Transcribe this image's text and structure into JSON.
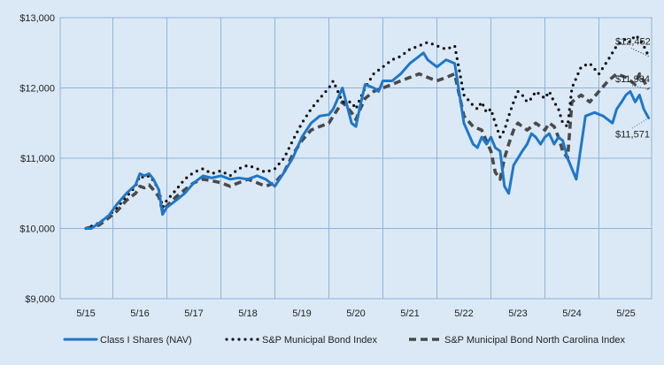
{
  "chart_data": {
    "type": "line",
    "x_ticks": [
      "5/15",
      "5/16",
      "5/17",
      "5/18",
      "5/19",
      "5/20",
      "5/21",
      "5/22",
      "5/23",
      "5/24",
      "5/25"
    ],
    "y_ticks": [
      "$9,000",
      "$10,000",
      "$11,000",
      "$12,000",
      "$13,000"
    ],
    "ylim": [
      9000,
      13000
    ],
    "xlim": [
      0,
      10.4
    ],
    "grid": true,
    "legend": "bottom",
    "series": [
      {
        "name": "Class I Shares (NAV)",
        "color": "#1f77c9",
        "style": "solid",
        "end_label": "$11,571",
        "x": [
          0,
          0.1,
          0.25,
          0.42,
          0.58,
          0.75,
          0.92,
          1.0,
          1.08,
          1.17,
          1.25,
          1.35,
          1.42,
          1.5,
          1.67,
          1.83,
          2.0,
          2.17,
          2.33,
          2.5,
          2.67,
          2.83,
          3.0,
          3.17,
          3.33,
          3.5,
          3.67,
          3.83,
          4.0,
          4.17,
          4.33,
          4.5,
          4.58,
          4.75,
          4.92,
          5.0,
          5.08,
          5.17,
          5.33,
          5.42,
          5.5,
          5.67,
          5.83,
          6.0,
          6.17,
          6.25,
          6.33,
          6.5,
          6.67,
          6.83,
          7.0,
          7.17,
          7.25,
          7.33,
          7.42,
          7.5,
          7.58,
          7.67,
          7.75,
          7.83,
          7.92,
          8.0,
          8.08,
          8.17,
          8.25,
          8.33,
          8.42,
          8.5,
          8.58,
          8.67,
          8.75,
          8.83,
          8.92,
          9.0,
          9.08,
          9.25,
          9.42,
          9.58,
          9.75,
          9.83,
          9.92,
          10.0,
          10.08,
          10.17,
          10.25,
          10.33,
          10.42
        ],
        "values": [
          10000,
          10000,
          10080,
          10180,
          10350,
          10500,
          10620,
          10780,
          10750,
          10780,
          10700,
          10550,
          10200,
          10300,
          10400,
          10500,
          10650,
          10750,
          10720,
          10750,
          10700,
          10720,
          10700,
          10750,
          10700,
          10600,
          10800,
          11000,
          11300,
          11500,
          11600,
          11620,
          11700,
          12000,
          11500,
          11450,
          11750,
          12050,
          12000,
          11950,
          12100,
          12100,
          12200,
          12350,
          12450,
          12500,
          12400,
          12300,
          12400,
          12350,
          11500,
          11200,
          11150,
          11300,
          11200,
          11300,
          11150,
          11100,
          10600,
          10500,
          10900,
          11000,
          11100,
          11200,
          11350,
          11300,
          11200,
          11300,
          11350,
          11200,
          11300,
          11250,
          11000,
          10850,
          10700,
          11600,
          11650,
          11600,
          11500,
          11700,
          11800,
          11900,
          11950,
          11800,
          11900,
          11700,
          11571
        ]
      },
      {
        "name": "S&P Municipal Bond Index",
        "color": "#111111",
        "style": "dotted",
        "end_label": "$12,452",
        "x": [
          0,
          0.25,
          0.42,
          0.58,
          0.75,
          0.92,
          1.0,
          1.08,
          1.17,
          1.25,
          1.35,
          1.42,
          1.5,
          1.67,
          1.83,
          2.0,
          2.17,
          2.33,
          2.5,
          2.67,
          2.83,
          3.0,
          3.17,
          3.33,
          3.5,
          3.67,
          3.83,
          4.0,
          4.17,
          4.33,
          4.5,
          4.58,
          4.75,
          4.92,
          5.0,
          5.08,
          5.17,
          5.33,
          5.5,
          5.67,
          5.83,
          6.0,
          6.17,
          6.33,
          6.5,
          6.67,
          6.83,
          7.0,
          7.17,
          7.25,
          7.33,
          7.42,
          7.5,
          7.58,
          7.67,
          7.75,
          7.83,
          7.92,
          8.0,
          8.08,
          8.17,
          8.25,
          8.33,
          8.42,
          8.5,
          8.58,
          8.67,
          8.75,
          8.83,
          8.92,
          9.0,
          9.17,
          9.33,
          9.5,
          9.67,
          9.83,
          10.0,
          10.08,
          10.17,
          10.25,
          10.33,
          10.42
        ],
        "values": [
          10000,
          10080,
          10180,
          10300,
          10450,
          10600,
          10750,
          10720,
          10750,
          10680,
          10550,
          10300,
          10400,
          10550,
          10700,
          10800,
          10850,
          10780,
          10820,
          10750,
          10850,
          10900,
          10850,
          10800,
          10850,
          11000,
          11250,
          11500,
          11700,
          11850,
          12000,
          12100,
          11800,
          11800,
          11700,
          11850,
          12000,
          12200,
          12300,
          12400,
          12450,
          12550,
          12600,
          12650,
          12600,
          12550,
          12600,
          11900,
          11750,
          11700,
          11800,
          11650,
          11700,
          11500,
          11300,
          11400,
          11600,
          11800,
          11950,
          11900,
          11800,
          11850,
          11950,
          11900,
          11850,
          11950,
          11800,
          11700,
          11500,
          11450,
          12000,
          12300,
          12350,
          12200,
          12400,
          12600,
          12700,
          12650,
          12750,
          12700,
          12600,
          12452
        ]
      },
      {
        "name": "S&P Municipal Bond North Carolina Index",
        "color": "#4a4a4a",
        "style": "dashed",
        "end_label": "$11,984",
        "x": [
          0,
          0.25,
          0.42,
          0.58,
          0.75,
          0.92,
          1.0,
          1.08,
          1.17,
          1.25,
          1.35,
          1.42,
          1.5,
          1.67,
          1.83,
          2.0,
          2.17,
          2.33,
          2.5,
          2.67,
          2.83,
          3.0,
          3.17,
          3.33,
          3.5,
          3.67,
          3.83,
          4.0,
          4.17,
          4.33,
          4.5,
          4.58,
          4.75,
          4.92,
          5.0,
          5.08,
          5.17,
          5.33,
          5.5,
          5.67,
          5.83,
          6.0,
          6.17,
          6.33,
          6.5,
          6.67,
          6.83,
          7.0,
          7.17,
          7.33,
          7.5,
          7.58,
          7.67,
          7.75,
          7.83,
          7.92,
          8.0,
          8.08,
          8.17,
          8.33,
          8.42,
          8.5,
          8.58,
          8.67,
          8.75,
          8.83,
          8.92,
          9.0,
          9.17,
          9.33,
          9.5,
          9.67,
          9.83,
          10.0,
          10.17,
          10.25,
          10.33,
          10.42
        ],
        "values": [
          10000,
          10050,
          10150,
          10250,
          10400,
          10500,
          10600,
          10580,
          10620,
          10550,
          10450,
          10250,
          10320,
          10450,
          10550,
          10650,
          10700,
          10680,
          10650,
          10600,
          10650,
          10700,
          10650,
          10600,
          10650,
          10800,
          11050,
          11250,
          11400,
          11450,
          11500,
          11600,
          11800,
          11650,
          11550,
          11700,
          11850,
          11950,
          12000,
          12050,
          12100,
          12150,
          12200,
          12150,
          12100,
          12150,
          12200,
          11600,
          11450,
          11400,
          11100,
          10800,
          10700,
          11000,
          11200,
          11400,
          11500,
          11450,
          11400,
          11500,
          11450,
          11400,
          11500,
          11450,
          11300,
          11100,
          11000,
          11800,
          11900,
          11800,
          11950,
          12100,
          12200,
          12150,
          12050,
          12200,
          12100,
          11984
        ]
      }
    ]
  }
}
